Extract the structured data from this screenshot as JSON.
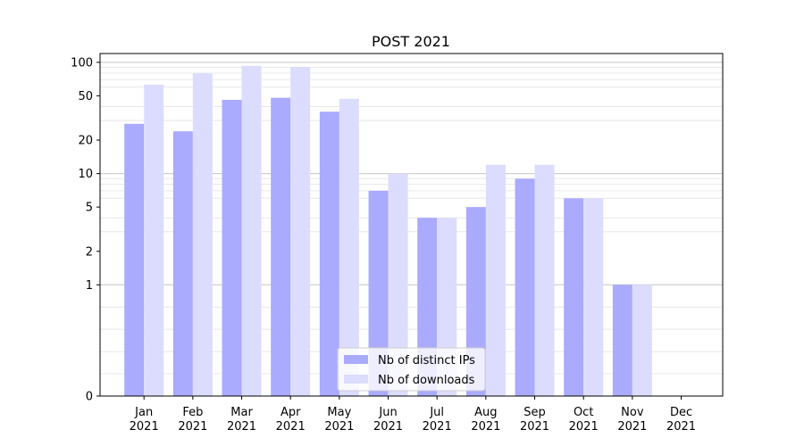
{
  "chart_data": {
    "type": "bar",
    "title": "POST 2021",
    "xlabel": "",
    "ylabel": "",
    "yscale": "symlog",
    "ylim": [
      0,
      120
    ],
    "yticks": [
      0,
      1,
      2,
      5,
      10,
      20,
      50,
      100
    ],
    "grid": "horizontal",
    "legend_position": "bottom-center",
    "categories": [
      {
        "month": "Jan",
        "year": "2021"
      },
      {
        "month": "Feb",
        "year": "2021"
      },
      {
        "month": "Mar",
        "year": "2021"
      },
      {
        "month": "Apr",
        "year": "2021"
      },
      {
        "month": "May",
        "year": "2021"
      },
      {
        "month": "Jun",
        "year": "2021"
      },
      {
        "month": "Jul",
        "year": "2021"
      },
      {
        "month": "Aug",
        "year": "2021"
      },
      {
        "month": "Sep",
        "year": "2021"
      },
      {
        "month": "Oct",
        "year": "2021"
      },
      {
        "month": "Nov",
        "year": "2021"
      },
      {
        "month": "Dec",
        "year": "2021"
      }
    ],
    "series": [
      {
        "name": "Nb of distinct IPs",
        "color": "#aaaaff",
        "values": [
          28,
          24,
          46,
          48,
          36,
          7,
          4,
          5,
          9,
          6,
          1,
          0
        ]
      },
      {
        "name": "Nb of downloads",
        "color": "#dcdcff",
        "values": [
          63,
          80,
          93,
          91,
          47,
          10,
          4,
          12,
          12,
          6,
          1,
          0
        ]
      }
    ]
  }
}
